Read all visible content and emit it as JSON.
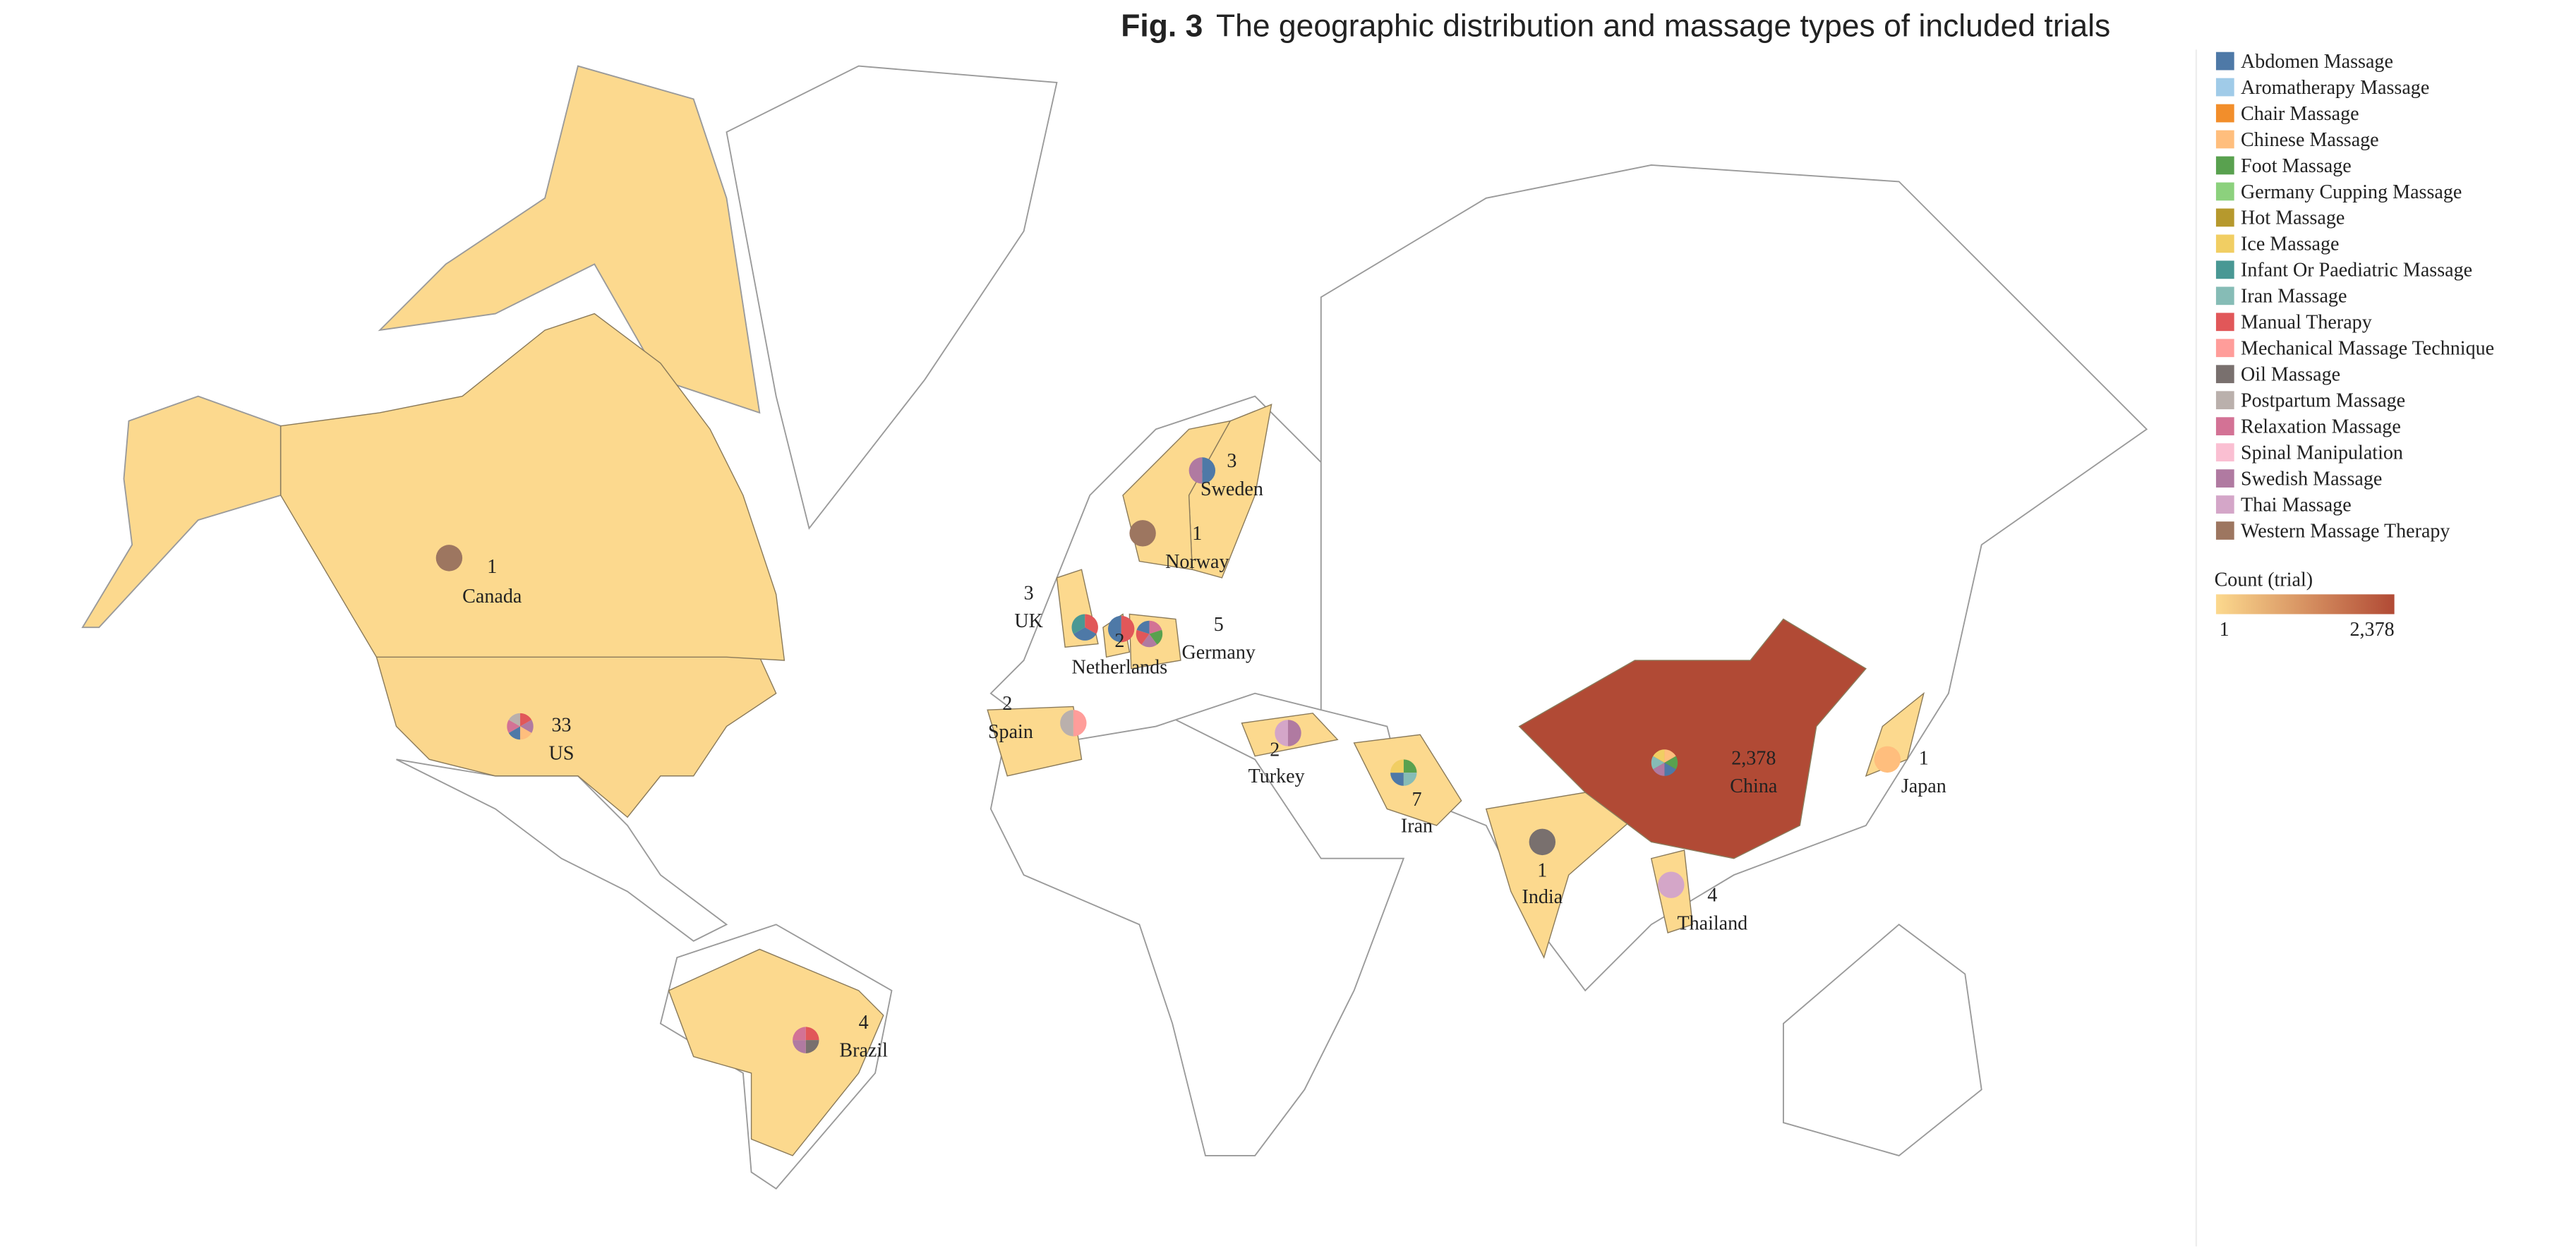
{
  "header": {
    "label": "Fig. 3",
    "text": "The geographic distribution and massage types of included trials"
  },
  "legend": {
    "items": [
      {
        "name": "Abdomen Massage",
        "color": "#4e79a7"
      },
      {
        "name": "Aromatherapy Massage",
        "color": "#a0cbe8"
      },
      {
        "name": "Chair Massage",
        "color": "#f28e2b"
      },
      {
        "name": "Chinese Massage",
        "color": "#ffbe7d"
      },
      {
        "name": "Foot Massage",
        "color": "#59a14f"
      },
      {
        "name": "Germany Cupping Massage",
        "color": "#8cd17d"
      },
      {
        "name": "Hot Massage",
        "color": "#b6992d"
      },
      {
        "name": "Ice Massage",
        "color": "#f1ce63"
      },
      {
        "name": "Infant Or Paediatric Massage",
        "color": "#499894"
      },
      {
        "name": "Iran Massage",
        "color": "#86bcb6"
      },
      {
        "name": "Manual Therapy",
        "color": "#e15759"
      },
      {
        "name": "Mechanical Massage Technique",
        "color": "#ff9d9a"
      },
      {
        "name": "Oil Massage",
        "color": "#79706e"
      },
      {
        "name": "Postpartum Massage",
        "color": "#bab0ac"
      },
      {
        "name": "Relaxation Massage",
        "color": "#d37295"
      },
      {
        "name": "Spinal Manipulation",
        "color": "#fabfd2"
      },
      {
        "name": "Swedish Massage",
        "color": "#b07aa1"
      },
      {
        "name": "Thai Massage",
        "color": "#d4a6c8"
      },
      {
        "name": "Western Massage Therapy",
        "color": "#9d7660"
      }
    ]
  },
  "scale": {
    "title": "Count (trial)",
    "min": 1,
    "max": {
      "value": 2378,
      "label": "2,378"
    },
    "colors": [
      "#fcd98e",
      "#b14a35"
    ]
  },
  "countries": [
    {
      "name": "US",
      "count": 33,
      "pie": [
        "#e15759",
        "#b07aa1",
        "#ffbe7d",
        "#4e79a7",
        "#d37295",
        "#bab0ac"
      ]
    },
    {
      "name": "Canada",
      "count": 1,
      "pie": [
        "#9d7660"
      ]
    },
    {
      "name": "Brazil",
      "count": 4,
      "pie": [
        "#e15759",
        "#79706e",
        "#b07aa1",
        "#d37295"
      ]
    },
    {
      "name": "Sweden",
      "count": 3,
      "pie": [
        "#4e79a7",
        "#b07aa1"
      ]
    },
    {
      "name": "Norway",
      "count": 1,
      "pie": [
        "#9d7660"
      ]
    },
    {
      "name": "UK",
      "count": 3,
      "pie": [
        "#e15759",
        "#4e79a7",
        "#499894"
      ]
    },
    {
      "name": "Netherlands",
      "count": 2,
      "pie": [
        "#e15759",
        "#4e79a7"
      ]
    },
    {
      "name": "Germany",
      "count": 5,
      "pie": [
        "#d37295",
        "#59a14f",
        "#b07aa1",
        "#e15759",
        "#4e79a7"
      ]
    },
    {
      "name": "Spain",
      "count": 2,
      "pie": [
        "#ff9d9a",
        "#bab0ac"
      ]
    },
    {
      "name": "Turkey",
      "count": 2,
      "pie": [
        "#b07aa1",
        "#d4a6c8"
      ]
    },
    {
      "name": "Iran",
      "count": 7,
      "pie": [
        "#59a14f",
        "#86bcb6",
        "#4e79a7",
        "#f1ce63"
      ]
    },
    {
      "name": "India",
      "count": 1,
      "pie": [
        "#79706e"
      ]
    },
    {
      "name": "China",
      "count": {
        "value": 2378,
        "label": "2,378"
      },
      "pie": [
        "#ffbe7d",
        "#59a14f",
        "#4e79a7",
        "#b07aa1",
        "#86bcb6",
        "#f1ce63"
      ]
    },
    {
      "name": "Japan",
      "count": 1,
      "pie": [
        "#ffbe7d"
      ]
    },
    {
      "name": "Thailand",
      "count": 4,
      "pie": [
        "#d4a6c8"
      ]
    }
  ]
}
